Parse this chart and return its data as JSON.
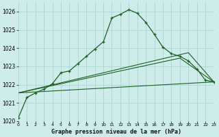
{
  "title": "Graphe pression niveau de la mer (hPa)",
  "background_color": "#ceecea",
  "grid_color": "#aed8d4",
  "line_color_main": "#1a6020",
  "xlim": [
    0,
    23
  ],
  "ylim": [
    1020,
    1026.5
  ],
  "xticks": [
    0,
    1,
    2,
    3,
    4,
    5,
    6,
    7,
    8,
    9,
    10,
    11,
    12,
    13,
    14,
    15,
    16,
    17,
    18,
    19,
    20,
    21,
    22,
    23
  ],
  "yticks": [
    1020,
    1021,
    1022,
    1023,
    1024,
    1025,
    1026
  ],
  "series_main": {
    "x": [
      0,
      1,
      2,
      3,
      4,
      5,
      6,
      7,
      8,
      9,
      10,
      11,
      12,
      13,
      14,
      15,
      16,
      17,
      18,
      19,
      20,
      21,
      22,
      23
    ],
    "y": [
      1020.2,
      1021.3,
      1021.55,
      1021.75,
      1022.05,
      1022.65,
      1022.75,
      1023.15,
      1023.55,
      1023.95,
      1024.35,
      1025.65,
      1025.85,
      1026.1,
      1025.9,
      1025.4,
      1024.75,
      1024.05,
      1023.7,
      1023.55,
      1023.3,
      1022.85,
      1022.25,
      1022.15
    ]
  },
  "series_line1": {
    "x": [
      0,
      23
    ],
    "y": [
      1021.55,
      1022.15
    ]
  },
  "series_line2": {
    "x": [
      0,
      19,
      23
    ],
    "y": [
      1021.55,
      1023.45,
      1022.15
    ]
  },
  "series_line3": {
    "x": [
      0,
      20,
      23
    ],
    "y": [
      1021.55,
      1023.75,
      1022.15
    ]
  }
}
